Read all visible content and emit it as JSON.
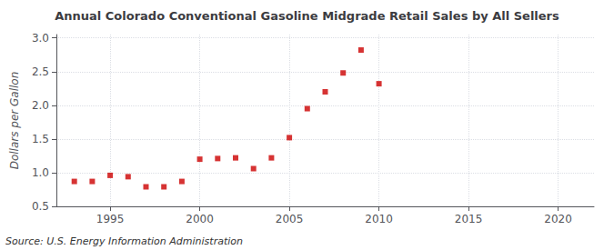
{
  "chart_data": {
    "type": "scatter",
    "title": "Annual Colorado Conventional Gasoline Midgrade Retail Sales by All Sellers",
    "ylabel": "Dollars per Gallon",
    "annotations": [
      "Source: U.S. Energy Information Administration"
    ],
    "x": [
      1993,
      1994,
      1995,
      1996,
      1997,
      1998,
      1999,
      2000,
      2001,
      2002,
      2003,
      2004,
      2005,
      2006,
      2007,
      2008,
      2009,
      2010
    ],
    "values": [
      0.87,
      0.87,
      0.96,
      0.94,
      0.79,
      0.79,
      0.87,
      1.2,
      1.21,
      1.22,
      1.06,
      1.22,
      1.52,
      1.95,
      2.2,
      2.48,
      2.82,
      2.32
    ],
    "color": "#cc0000",
    "marker": "square",
    "xlim": [
      1992,
      2022
    ],
    "ylim": [
      0.5,
      3.05
    ],
    "xticks": [
      1995,
      2000,
      2005,
      2010,
      2015,
      2020
    ],
    "yticks": [
      0.5,
      {
        "value": 1.0,
        "label": "1.0"
      },
      1.5,
      {
        "value": 2.0,
        "label": "2.0"
      },
      2.5,
      {
        "value": 3.0,
        "label": "3.0"
      }
    ],
    "grid": true
  }
}
